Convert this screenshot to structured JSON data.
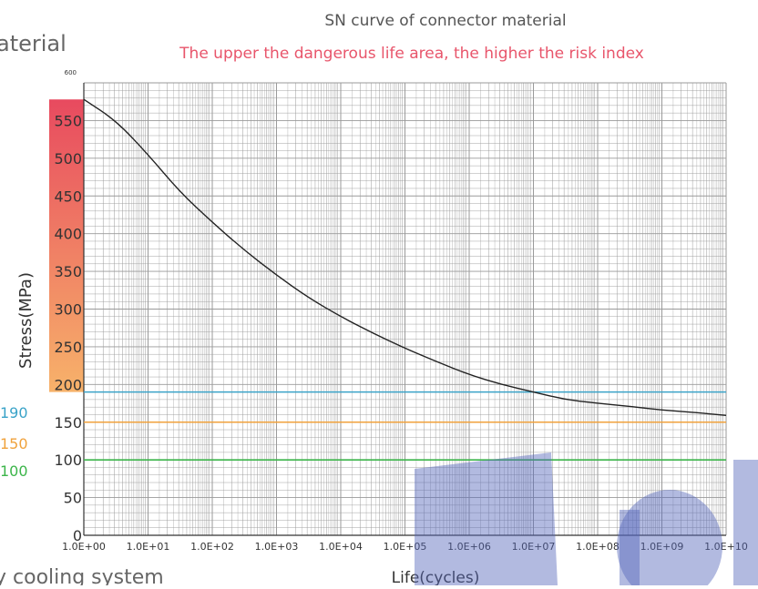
{
  "fragments": {
    "top_left": "aterial",
    "bottom_left": "y cooling system"
  },
  "chart_data": {
    "type": "line",
    "title": "SN curve of connector material",
    "subtitle": "The upper the dangerous life area, the higher the risk index",
    "xlabel": "Life(cycles)",
    "ylabel": "Stress(MPa)",
    "x_scale": "log",
    "xlim": [
      1,
      10000000000
    ],
    "ylim": [
      0,
      600
    ],
    "grid": true,
    "x_tick_labels": [
      "1.0E+00",
      "1.0E+01",
      "1.0E+02",
      "1.0E+03",
      "1.0E+04",
      "1.0E+05",
      "1.0E+06",
      "1.0E+07",
      "1.0E+08",
      "1.0E+09",
      "1.0E+10"
    ],
    "y_tick_labels": [
      "0",
      "50",
      "100",
      "150",
      "200",
      "250",
      "300",
      "350",
      "400",
      "450",
      "500",
      "550",
      "600"
    ],
    "series": [
      {
        "x": [
          1,
          3.16,
          10,
          31.6,
          100,
          316,
          1000,
          3162,
          10000,
          31623,
          100000,
          316228,
          1000000,
          3162278,
          10000000,
          31622777,
          100000000,
          316227766,
          1000000000,
          3162277660,
          10000000000
        ],
        "y": [
          578,
          550,
          505,
          455,
          415,
          378,
          345,
          315,
          290,
          268,
          248,
          230,
          213,
          200,
          190,
          180,
          175,
          171,
          166,
          163,
          159
        ],
        "color": "#222222"
      }
    ],
    "reference_lines": [
      {
        "label": "190",
        "value": 190,
        "color": "#3aa3c8"
      },
      {
        "label": "150",
        "value": 150,
        "color": "#f0a23c"
      },
      {
        "label": "100",
        "value": 100,
        "color": "#3cb54a"
      }
    ],
    "risk_bar": {
      "from": 190,
      "to": 578,
      "color_top": "#e84a5f",
      "color_bottom": "#f7b26a"
    },
    "colors": {
      "title": "#555555",
      "subtitle": "#e8556b",
      "grid": "#9a9a9a",
      "axis": "#333333",
      "watermark": "#5566bb"
    }
  }
}
